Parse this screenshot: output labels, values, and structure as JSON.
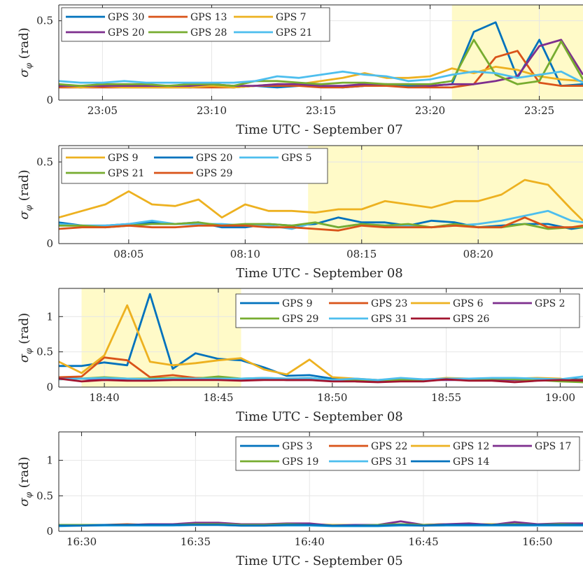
{
  "chart_data": [
    {
      "type": "line",
      "ylabel": "σ_φ (rad)",
      "xlabel": "Time UTC - September 07",
      "x_unit": "minutes",
      "xlim": [
        1383,
        1407
      ],
      "ylim": [
        0,
        0.6
      ],
      "yticks": [
        0,
        0.5
      ],
      "xticks": [
        {
          "v": 1385,
          "label": "23:05"
        },
        {
          "v": 1390,
          "label": "23:10"
        },
        {
          "v": 1395,
          "label": "23:15"
        },
        {
          "v": 1400,
          "label": "23:20"
        },
        {
          "v": 1405,
          "label": "23:25"
        }
      ],
      "highlight": [
        1401,
        1407
      ],
      "legend": {
        "placement": "top-left",
        "cols": 3
      },
      "x": [
        1383,
        1384,
        1385,
        1386,
        1387,
        1388,
        1389,
        1390,
        1391,
        1392,
        1393,
        1394,
        1395,
        1396,
        1397,
        1398,
        1399,
        1400,
        1401,
        1402,
        1403,
        1404,
        1405,
        1406,
        1407
      ],
      "series": [
        {
          "name": "GPS 30",
          "color": "#0072BD",
          "values": [
            0.09,
            0.08,
            0.09,
            0.09,
            0.09,
            0.09,
            0.08,
            0.09,
            0.08,
            0.09,
            0.08,
            0.09,
            0.09,
            0.08,
            0.09,
            0.1,
            0.09,
            0.09,
            0.1,
            0.43,
            0.49,
            0.14,
            0.38,
            0.09,
            0.1
          ]
        },
        {
          "name": "GPS 13",
          "color": "#D95319",
          "values": [
            0.08,
            0.08,
            0.08,
            0.08,
            0.08,
            0.08,
            0.08,
            0.08,
            0.08,
            0.09,
            0.09,
            0.09,
            0.08,
            0.08,
            0.09,
            0.09,
            0.08,
            0.08,
            0.08,
            0.1,
            0.27,
            0.31,
            0.11,
            0.09,
            0.09
          ]
        },
        {
          "name": "GPS 7",
          "color": "#EDB120",
          "values": [
            0.09,
            0.08,
            0.09,
            0.08,
            0.08,
            0.08,
            0.08,
            0.09,
            0.08,
            0.09,
            0.1,
            0.1,
            0.12,
            0.14,
            0.17,
            0.14,
            0.14,
            0.15,
            0.2,
            0.17,
            0.21,
            0.19,
            0.15,
            0.13,
            0.12
          ]
        },
        {
          "name": "GPS 20",
          "color": "#7E2F8E",
          "values": [
            0.09,
            0.09,
            0.09,
            0.09,
            0.09,
            0.09,
            0.09,
            0.1,
            0.09,
            0.09,
            0.1,
            0.1,
            0.09,
            0.09,
            0.1,
            0.1,
            0.1,
            0.09,
            0.1,
            0.1,
            0.12,
            0.15,
            0.34,
            0.38,
            0.16
          ]
        },
        {
          "name": "GPS 28",
          "color": "#77AC30",
          "values": [
            0.1,
            0.09,
            0.1,
            0.1,
            0.1,
            0.09,
            0.1,
            0.1,
            0.09,
            0.12,
            0.12,
            0.11,
            0.1,
            0.11,
            0.11,
            0.1,
            0.1,
            0.1,
            0.12,
            0.38,
            0.16,
            0.1,
            0.12,
            0.37,
            0.13
          ]
        },
        {
          "name": "GPS 21",
          "color": "#4DBEEE",
          "values": [
            0.12,
            0.11,
            0.11,
            0.12,
            0.11,
            0.11,
            0.11,
            0.11,
            0.11,
            0.12,
            0.15,
            0.14,
            0.16,
            0.18,
            0.16,
            0.15,
            0.12,
            0.13,
            0.16,
            0.18,
            0.17,
            0.14,
            0.16,
            0.18,
            0.11
          ]
        }
      ]
    },
    {
      "type": "line",
      "ylabel": "σ_φ (rad)",
      "xlabel": "Time UTC - September 08",
      "x_unit": "minutes",
      "xlim": [
        482,
        504.5
      ],
      "ylim": [
        0,
        0.6
      ],
      "yticks": [
        0,
        0.5
      ],
      "xticks": [
        {
          "v": 485,
          "label": "08:05"
        },
        {
          "v": 490,
          "label": "08:10"
        },
        {
          "v": 495,
          "label": "08:15"
        },
        {
          "v": 500,
          "label": "08:20"
        }
      ],
      "highlight": [
        492.7,
        504.5
      ],
      "legend": {
        "placement": "top-left",
        "cols": 3
      },
      "x": [
        482,
        483,
        484,
        485,
        486,
        487,
        488,
        489,
        490,
        491,
        492,
        493,
        494,
        495,
        496,
        497,
        498,
        499,
        500,
        501,
        502,
        503,
        504,
        504.5
      ],
      "series": [
        {
          "name": "GPS 9",
          "color": "#EDB120",
          "values": [
            0.16,
            0.2,
            0.24,
            0.32,
            0.24,
            0.23,
            0.27,
            0.16,
            0.24,
            0.2,
            0.2,
            0.19,
            0.21,
            0.21,
            0.26,
            0.24,
            0.22,
            0.26,
            0.26,
            0.3,
            0.39,
            0.36,
            0.21,
            0.14
          ]
        },
        {
          "name": "GPS 20",
          "color": "#0072BD",
          "values": [
            0.13,
            0.11,
            0.11,
            0.12,
            0.13,
            0.12,
            0.13,
            0.1,
            0.1,
            0.12,
            0.11,
            0.12,
            0.16,
            0.13,
            0.13,
            0.11,
            0.14,
            0.13,
            0.1,
            0.11,
            0.12,
            0.12,
            0.09,
            0.1
          ]
        },
        {
          "name": "GPS 5",
          "color": "#4DBEEE",
          "values": [
            0.12,
            0.11,
            0.11,
            0.12,
            0.14,
            0.12,
            0.12,
            0.12,
            0.11,
            0.11,
            0.09,
            0.13,
            0.1,
            0.12,
            0.11,
            0.11,
            0.1,
            0.11,
            0.12,
            0.14,
            0.17,
            0.2,
            0.14,
            0.13
          ]
        },
        {
          "name": "GPS 21",
          "color": "#77AC30",
          "values": [
            0.11,
            0.11,
            0.1,
            0.11,
            0.12,
            0.12,
            0.13,
            0.11,
            0.12,
            0.12,
            0.11,
            0.13,
            0.1,
            0.12,
            0.11,
            0.12,
            0.1,
            0.12,
            0.1,
            0.1,
            0.12,
            0.09,
            0.1,
            0.1
          ]
        },
        {
          "name": "GPS 29",
          "color": "#D95319",
          "values": [
            0.09,
            0.1,
            0.1,
            0.11,
            0.1,
            0.1,
            0.11,
            0.11,
            0.11,
            0.1,
            0.1,
            0.09,
            0.08,
            0.11,
            0.1,
            0.1,
            0.1,
            0.11,
            0.1,
            0.1,
            0.16,
            0.1,
            0.1,
            0.11
          ]
        }
      ]
    },
    {
      "type": "line",
      "ylabel": "σ_φ (rad)",
      "xlabel": "Time UTC - September 08",
      "x_unit": "minutes",
      "xlim": [
        1118,
        1141
      ],
      "ylim": [
        0,
        1.4
      ],
      "yticks": [
        0,
        0.5,
        1
      ],
      "xticks": [
        {
          "v": 1120,
          "label": "18:40"
        },
        {
          "v": 1125,
          "label": "18:45"
        },
        {
          "v": 1130,
          "label": "18:50"
        },
        {
          "v": 1135,
          "label": "18:55"
        },
        {
          "v": 1140,
          "label": "19:00"
        }
      ],
      "highlight": [
        1119,
        1126
      ],
      "legend": {
        "placement": "top-right",
        "cols": 4
      },
      "x": [
        1118,
        1119,
        1120,
        1121,
        1122,
        1123,
        1124,
        1125,
        1126,
        1127,
        1128,
        1129,
        1130,
        1131,
        1132,
        1133,
        1134,
        1135,
        1136,
        1137,
        1138,
        1139,
        1140,
        1141
      ],
      "series": [
        {
          "name": "GPS 9",
          "color": "#0072BD",
          "values": [
            0.3,
            0.3,
            0.35,
            0.31,
            1.32,
            0.26,
            0.48,
            0.4,
            0.38,
            0.28,
            0.16,
            0.17,
            0.12,
            0.11,
            0.1,
            0.1,
            0.1,
            0.11,
            0.1,
            0.11,
            0.11,
            0.1,
            0.11,
            0.11
          ]
        },
        {
          "name": "GPS 23",
          "color": "#D95319",
          "values": [
            0.14,
            0.15,
            0.42,
            0.38,
            0.14,
            0.17,
            0.13,
            0.13,
            0.11,
            0.12,
            0.1,
            0.1,
            0.09,
            0.1,
            0.09,
            0.1,
            0.1,
            0.12,
            0.1,
            0.1,
            0.1,
            0.1,
            0.1,
            0.1
          ]
        },
        {
          "name": "GPS 6",
          "color": "#EDB120",
          "values": [
            0.36,
            0.2,
            0.45,
            1.16,
            0.36,
            0.31,
            0.34,
            0.38,
            0.41,
            0.25,
            0.18,
            0.39,
            0.14,
            0.12,
            0.1,
            0.12,
            0.1,
            0.13,
            0.12,
            0.12,
            0.12,
            0.13,
            0.12,
            0.07
          ]
        },
        {
          "name": "GPS 2",
          "color": "#7E2F8E",
          "values": [
            0.12,
            0.12,
            0.1,
            0.11,
            0.12,
            0.11,
            0.12,
            0.12,
            0.1,
            0.12,
            0.1,
            0.1,
            0.09,
            0.09,
            0.08,
            0.09,
            0.1,
            0.1,
            0.1,
            0.11,
            0.1,
            0.11,
            0.1,
            0.09
          ]
        },
        {
          "name": "GPS 29",
          "color": "#77AC30",
          "values": [
            0.11,
            0.12,
            0.14,
            0.12,
            0.12,
            0.13,
            0.12,
            0.15,
            0.12,
            0.13,
            0.12,
            0.13,
            0.1,
            0.1,
            0.1,
            0.1,
            0.1,
            0.12,
            0.11,
            0.12,
            0.11,
            0.1,
            0.08,
            0.07
          ]
        },
        {
          "name": "GPS 31",
          "color": "#4DBEEE",
          "values": [
            0.11,
            0.12,
            0.13,
            0.12,
            0.11,
            0.12,
            0.12,
            0.12,
            0.12,
            0.13,
            0.12,
            0.13,
            0.1,
            0.12,
            0.1,
            0.13,
            0.11,
            0.12,
            0.12,
            0.13,
            0.13,
            0.12,
            0.11,
            0.15
          ]
        },
        {
          "name": "GPS 26",
          "color": "#A2142F",
          "values": [
            0.12,
            0.08,
            0.1,
            0.09,
            0.09,
            0.1,
            0.1,
            0.1,
            0.09,
            0.1,
            0.1,
            0.1,
            0.08,
            0.08,
            0.07,
            0.08,
            0.08,
            0.11,
            0.09,
            0.09,
            0.07,
            0.09,
            0.1,
            0.09
          ]
        }
      ]
    },
    {
      "type": "line",
      "ylabel": "σ_φ (rad)",
      "xlabel": "Time UTC - September 05",
      "x_unit": "minutes",
      "xlim": [
        989,
        1012
      ],
      "ylim": [
        0,
        1.4
      ],
      "yticks": [
        0,
        0.5,
        1
      ],
      "xticks": [
        {
          "v": 990,
          "label": "16:30"
        },
        {
          "v": 995,
          "label": "16:35"
        },
        {
          "v": 1000,
          "label": "16:40"
        },
        {
          "v": 1005,
          "label": "16:45"
        },
        {
          "v": 1010,
          "label": "16:50"
        }
      ],
      "highlight": null,
      "legend": {
        "placement": "top-right",
        "cols": 4
      },
      "x": [
        989,
        990,
        991,
        992,
        993,
        994,
        995,
        996,
        997,
        998,
        999,
        1000,
        1001,
        1002,
        1003,
        1004,
        1005,
        1006,
        1007,
        1008,
        1009,
        1010,
        1011,
        1012
      ],
      "series": [
        {
          "name": "GPS 3",
          "color": "#0072BD",
          "values": [
            0.08,
            0.09,
            0.09,
            0.09,
            0.09,
            0.1,
            0.1,
            0.1,
            0.09,
            0.09,
            0.09,
            0.09,
            0.08,
            0.08,
            0.08,
            0.09,
            0.09,
            0.09,
            0.09,
            0.09,
            0.1,
            0.09,
            0.09,
            0.09
          ]
        },
        {
          "name": "GPS 22",
          "color": "#D95319",
          "values": [
            0.08,
            0.09,
            0.09,
            0.1,
            0.09,
            0.1,
            0.1,
            0.11,
            0.1,
            0.09,
            0.1,
            0.1,
            0.08,
            0.09,
            0.09,
            0.09,
            0.09,
            0.1,
            0.1,
            0.09,
            0.1,
            0.1,
            0.1,
            0.1
          ]
        },
        {
          "name": "GPS 12",
          "color": "#EDB120",
          "values": [
            0.09,
            0.09,
            0.09,
            0.09,
            0.1,
            0.1,
            0.1,
            0.1,
            0.1,
            0.09,
            0.1,
            0.1,
            0.09,
            0.09,
            0.09,
            0.1,
            0.09,
            0.1,
            0.1,
            0.1,
            0.1,
            0.1,
            0.1,
            0.1
          ]
        },
        {
          "name": "GPS 17",
          "color": "#7E2F8E",
          "values": [
            0.08,
            0.09,
            0.09,
            0.09,
            0.1,
            0.1,
            0.12,
            0.12,
            0.1,
            0.1,
            0.11,
            0.11,
            0.08,
            0.09,
            0.09,
            0.14,
            0.09,
            0.1,
            0.11,
            0.09,
            0.13,
            0.1,
            0.11,
            0.11
          ]
        },
        {
          "name": "GPS 19",
          "color": "#77AC30",
          "values": [
            0.09,
            0.09,
            0.09,
            0.09,
            0.09,
            0.09,
            0.1,
            0.1,
            0.09,
            0.09,
            0.1,
            0.09,
            0.08,
            0.08,
            0.09,
            0.1,
            0.09,
            0.09,
            0.09,
            0.09,
            0.1,
            0.09,
            0.1,
            0.09
          ]
        },
        {
          "name": "GPS 31",
          "color": "#4DBEEE",
          "values": [
            0.07,
            0.08,
            0.08,
            0.08,
            0.08,
            0.08,
            0.09,
            0.09,
            0.08,
            0.08,
            0.08,
            0.08,
            0.07,
            0.07,
            0.07,
            0.08,
            0.08,
            0.08,
            0.08,
            0.08,
            0.08,
            0.08,
            0.08,
            0.08
          ]
        },
        {
          "name": "GPS 14",
          "color": "#0072BD",
          "values": [
            0.08,
            0.08,
            0.09,
            0.09,
            0.09,
            0.09,
            0.09,
            0.09,
            0.08,
            0.08,
            0.09,
            0.09,
            0.08,
            0.08,
            0.08,
            0.09,
            0.08,
            0.09,
            0.09,
            0.09,
            0.09,
            0.09,
            0.09,
            0.09
          ]
        }
      ]
    }
  ]
}
